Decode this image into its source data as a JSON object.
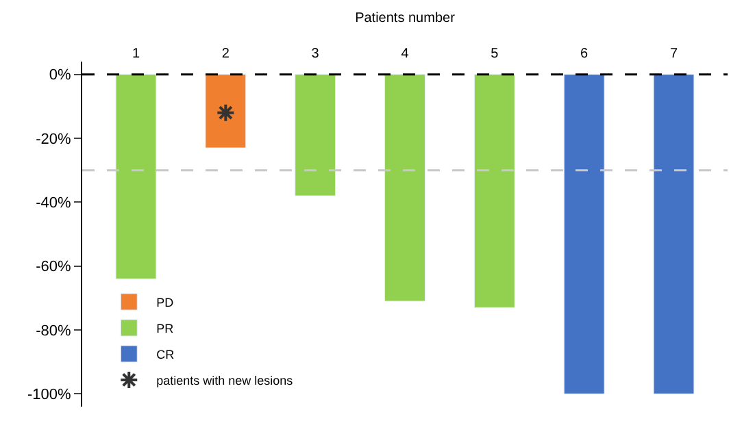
{
  "chart_data": {
    "type": "bar",
    "xlabel": "Patients number",
    "categories": [
      "1",
      "2",
      "3",
      "4",
      "5",
      "6",
      "7"
    ],
    "series": [
      {
        "name": "PD",
        "color": "#f07f2f",
        "values": [
          null,
          -23,
          null,
          null,
          null,
          null,
          null
        ]
      },
      {
        "name": "PR",
        "color": "#92d050",
        "values": [
          -64,
          null,
          -38,
          -71,
          -73,
          null,
          null
        ]
      },
      {
        "name": "CR",
        "color": "#4472c4",
        "values": [
          null,
          null,
          null,
          null,
          null,
          -100,
          -100
        ]
      },
      {
        "name": "patients with new lesions",
        "type": "scatter",
        "marker": "cross",
        "color": "#333333",
        "x": [
          "2"
        ],
        "values": [
          -12
        ]
      }
    ],
    "ylim": [
      -104,
      4
    ],
    "yticks": [
      {
        "value": 0,
        "label": "0%"
      },
      {
        "value": -20,
        "label": "-20%"
      },
      {
        "value": -40,
        "label": "-40%"
      },
      {
        "value": -60,
        "label": "-60%"
      },
      {
        "value": -80,
        "label": "-80%"
      },
      {
        "value": -100,
        "label": "-100%"
      }
    ],
    "ref_lines": [
      {
        "axis": "y",
        "value": 0,
        "color": "#000000",
        "line_style": "dashed"
      },
      {
        "axis": "y",
        "value": -30,
        "color": "#c8c8c8",
        "line_style": "dashed"
      }
    ],
    "legend": "bottom left"
  }
}
